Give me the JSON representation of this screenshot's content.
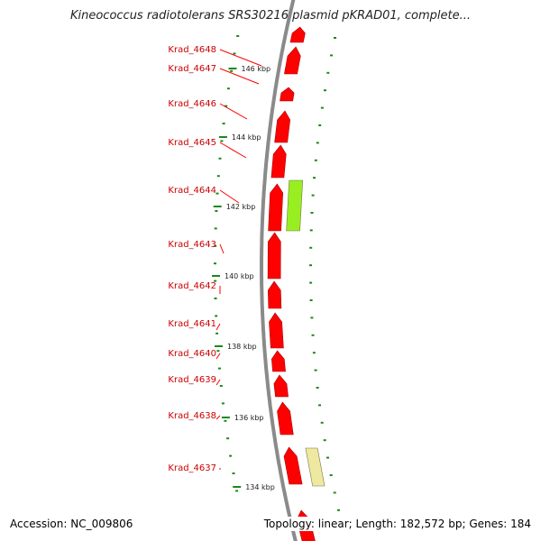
{
  "title": "Kineococcus radiotolerans SRS30216 plasmid pKRAD01, complete...",
  "footer": {
    "accession": "Accession: NC_009806",
    "summary": "Topology: linear; Length: 182,572 bp; Genes: 184"
  },
  "colors": {
    "backbone": "#8a8a8a",
    "gene": "#ff0000",
    "gene_highlight": "#99ee22",
    "gene_pale": "#eee8a0",
    "tick": "#1a8a1a",
    "label": "#cc0000",
    "leader": "#ff0000"
  },
  "chart_data": {
    "type": "diagram",
    "scale_labels": [
      "134 kbp",
      "136 kbp",
      "138 kbp",
      "140 kbp",
      "142 kbp",
      "144 kbp",
      "146 kbp"
    ],
    "gene_labels": [
      "Krad_4648",
      "Krad_4647",
      "Krad_4646",
      "Krad_4645",
      "Krad_4644",
      "Krad_4643",
      "Krad_4642",
      "Krad_4641",
      "Krad_4640",
      "Krad_4639",
      "Krad_4638",
      "Krad_4637"
    ]
  }
}
